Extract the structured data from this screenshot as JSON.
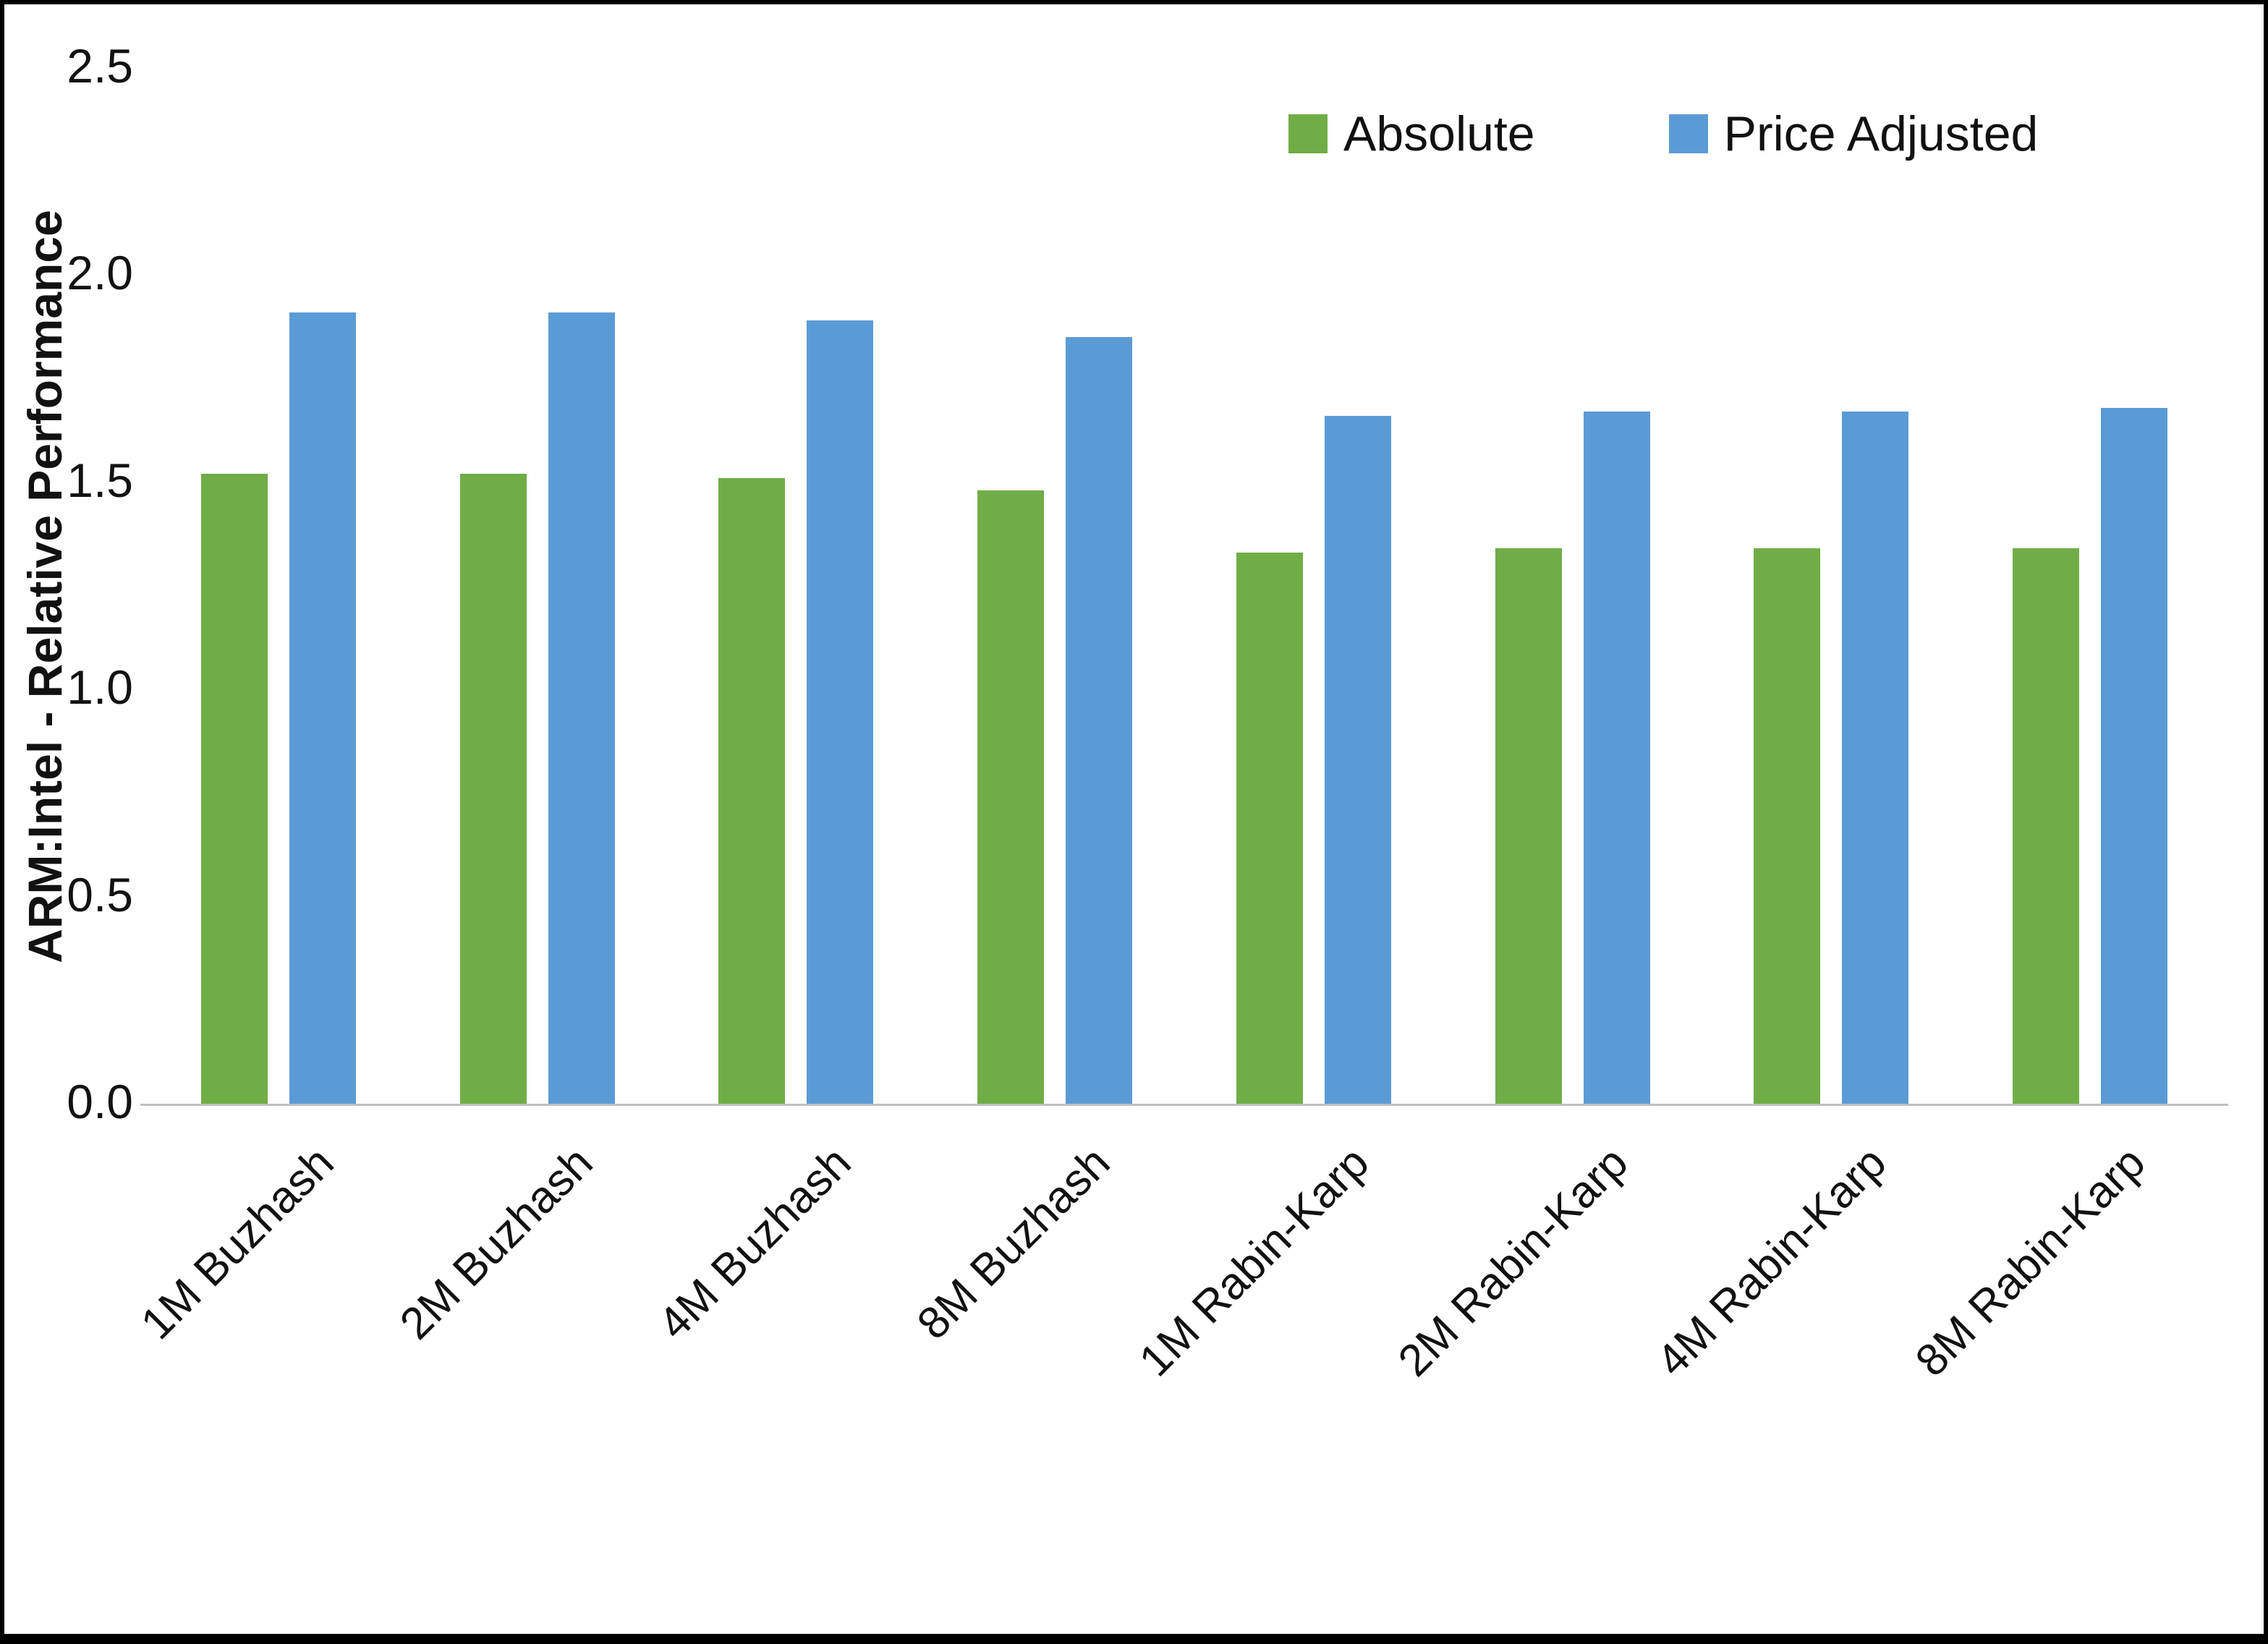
{
  "chart_data": {
    "type": "bar",
    "categories": [
      "1M Buzhash",
      "2M Buzhash",
      "4M Buzhash",
      "8M Buzhash",
      "1M Rabin-Karp",
      "2M Rabin-Karp",
      "4M Rabin-Karp",
      "8M Rabin-Karp"
    ],
    "series": [
      {
        "name": "Absolute",
        "color": "#70AD47",
        "values": [
          1.52,
          1.52,
          1.51,
          1.48,
          1.33,
          1.34,
          1.34,
          1.34
        ]
      },
      {
        "name": "Price Adjusted",
        "color": "#5B9BD5",
        "values": [
          1.91,
          1.91,
          1.89,
          1.85,
          1.66,
          1.67,
          1.67,
          1.68
        ]
      }
    ],
    "title": "",
    "xlabel": "",
    "ylabel": "ARM:Intel - Relative Performance",
    "ylim": [
      0,
      2.5
    ],
    "yticks": [
      "0.0",
      "0.5",
      "1.0",
      "1.5",
      "2.0",
      "2.5"
    ],
    "ytick_values": [
      0,
      0.5,
      1.0,
      1.5,
      2.0,
      2.5
    ],
    "grid": false,
    "legend_position": "top-right",
    "colors": {
      "absolute": "#70AD47",
      "price_adjusted": "#5B9BD5",
      "axis_line": "#bfbfbf",
      "frame": "#000000"
    }
  }
}
